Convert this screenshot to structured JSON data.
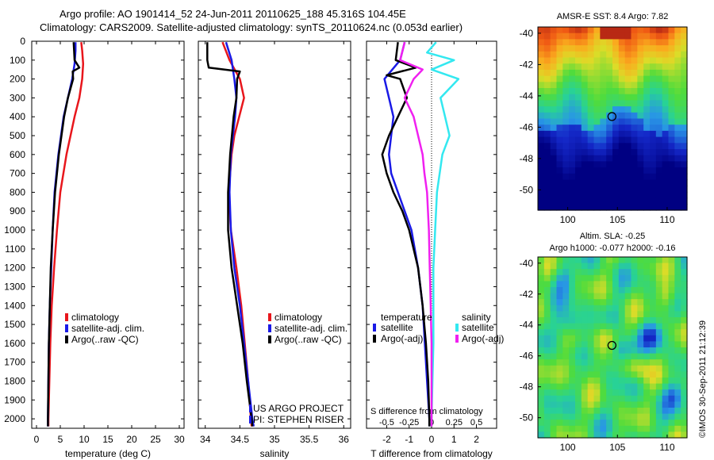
{
  "header": {
    "line1": "Argo profile: AO 1901414_52 24-Jun-2011 20110625_188 45.316S 104.45E",
    "line2": "Climatology: CARS2009. Satellite-adjusted climatology: synTS_20110624.nc (0.053d earlier)"
  },
  "colors": {
    "climatology": "#e8161c",
    "satellite": "#1a1ae6",
    "argo": "#000000",
    "sat_salinity": "#33e8f0",
    "argo_salinity": "#f020f0"
  },
  "chart_data": [
    {
      "type": "line",
      "title": "",
      "xlabel": "temperature (deg C)",
      "ylabel": "",
      "xlim": [
        -1,
        31
      ],
      "ylim": [
        2050,
        0
      ],
      "xticks": [
        "0",
        "5",
        "10",
        "15",
        "20",
        "25",
        "30"
      ],
      "yticks": [
        "0",
        "100",
        "200",
        "300",
        "400",
        "500",
        "600",
        "700",
        "800",
        "900",
        "1000",
        "1100",
        "1200",
        "1300",
        "1400",
        "1500",
        "1600",
        "1700",
        "1800",
        "1900",
        "2000"
      ],
      "legend": [
        "climatology",
        "satellite-adj. clim.",
        "Argo(..raw -QC)"
      ],
      "series": [
        {
          "name": "climatology",
          "color": "#e8161c",
          "depth": [
            5,
            50,
            120,
            200,
            300,
            400,
            600,
            800,
            1000,
            1200,
            1400,
            1600,
            1800,
            2000,
            2040
          ],
          "values": [
            9.4,
            9.6,
            9.8,
            9.6,
            9.0,
            8.0,
            6.3,
            5.0,
            4.3,
            3.7,
            3.2,
            2.9,
            2.7,
            2.5,
            2.5
          ]
        },
        {
          "name": "satellite-adj. clim.",
          "color": "#1a1ae6",
          "depth": [
            5,
            50,
            120,
            200,
            300,
            400,
            600,
            800,
            1000,
            1200,
            1400,
            1600,
            1800,
            2000,
            2040
          ],
          "values": [
            8.2,
            8.2,
            8.0,
            7.5,
            6.6,
            5.7,
            4.6,
            3.8,
            3.4,
            3.1,
            2.8,
            2.6,
            2.5,
            2.4,
            2.4
          ]
        },
        {
          "name": "Argo(..raw -QC)",
          "color": "#000000",
          "depth": [
            5,
            50,
            100,
            140,
            160,
            200,
            300,
            400,
            600,
            800,
            1000,
            1200,
            1400,
            1600,
            1800,
            2000,
            2040
          ],
          "values": [
            7.8,
            7.9,
            8.0,
            9.0,
            7.6,
            7.7,
            6.6,
            5.8,
            4.7,
            3.9,
            3.4,
            3.0,
            2.8,
            2.6,
            2.5,
            2.4,
            2.4
          ]
        }
      ]
    },
    {
      "type": "line",
      "xlabel": "salinity",
      "xlim": [
        33.9,
        36.1
      ],
      "ylim": [
        2050,
        0
      ],
      "xticks": [
        "34",
        "34.5",
        "35",
        "35.5",
        "36"
      ],
      "legend": [
        "climatology",
        "satellite-adj. clim.",
        "Argo(..raw -QC)"
      ],
      "annotations": [
        "US ARGO PROJECT",
        "PI: STEPHEN RISER"
      ],
      "series": [
        {
          "name": "climatology",
          "color": "#e8161c",
          "depth": [
            5,
            100,
            200,
            300,
            400,
            500,
            600,
            800,
            1000,
            1200,
            1400,
            1600,
            1800,
            2000,
            2040
          ],
          "values": [
            34.25,
            34.35,
            34.5,
            34.56,
            34.49,
            34.42,
            34.38,
            34.34,
            34.37,
            34.45,
            34.52,
            34.57,
            34.62,
            34.66,
            34.67
          ]
        },
        {
          "name": "satellite-adj. clim.",
          "color": "#1a1ae6",
          "depth": [
            5,
            100,
            200,
            300,
            400,
            500,
            600,
            800,
            1000,
            1200,
            1400,
            1600,
            1800,
            2000,
            2040
          ],
          "values": [
            34.3,
            34.38,
            34.42,
            34.45,
            34.43,
            34.4,
            34.37,
            34.35,
            34.37,
            34.42,
            34.5,
            34.56,
            34.62,
            34.68,
            34.7
          ]
        },
        {
          "name": "Argo(..raw -QC)",
          "color": "#000000",
          "depth": [
            5,
            100,
            140,
            160,
            200,
            300,
            400,
            600,
            800,
            1000,
            1200,
            1400,
            1600,
            1800,
            2000,
            2040
          ],
          "values": [
            34.03,
            34.03,
            34.05,
            34.5,
            34.46,
            34.45,
            34.41,
            34.36,
            34.33,
            34.33,
            34.38,
            34.46,
            34.54,
            34.6,
            34.67,
            34.68
          ]
        }
      ]
    },
    {
      "type": "line",
      "xlabel": "T difference from climatology",
      "xlabel_top": "S difference from climatology",
      "xlim": [
        -2.9,
        2.9
      ],
      "ylim": [
        2050,
        0
      ],
      "xticks": [
        "-2",
        "-1",
        "0",
        "1",
        "2"
      ],
      "xticks_top": [
        "-0.5",
        "-0.25",
        "0",
        "0.25",
        "0.5"
      ],
      "legend": [
        "temperature",
        "satellite",
        "Argo(-adj)",
        "salinity",
        "satellite",
        "Argo(-adj)"
      ],
      "series": [
        {
          "name": "T satellite",
          "color": "#1a1ae6",
          "depth": [
            5,
            100,
            200,
            300,
            400,
            500,
            600,
            700,
            800,
            900,
            1000,
            1200,
            1400,
            1600,
            1800,
            2000,
            2040
          ],
          "values": [
            -1.2,
            -1.4,
            -2.1,
            -1.9,
            -1.7,
            -1.8,
            -1.9,
            -1.8,
            -1.5,
            -1.2,
            -0.9,
            -0.6,
            -0.4,
            -0.3,
            -0.2,
            -0.1,
            -0.1
          ]
        },
        {
          "name": "T Argo(-adj)",
          "color": "#000000",
          "depth": [
            5,
            100,
            140,
            180,
            200,
            300,
            400,
            500,
            600,
            700,
            800,
            900,
            1000,
            1200,
            1400,
            1600,
            1800,
            2000,
            2040
          ],
          "values": [
            -1.5,
            -1.6,
            -0.7,
            -2.0,
            -1.4,
            -1.1,
            -1.5,
            -1.9,
            -2.2,
            -2.0,
            -1.7,
            -1.3,
            -1.0,
            -0.6,
            -0.4,
            -0.25,
            -0.15,
            -0.1,
            -0.1
          ]
        },
        {
          "name": "S satellite",
          "color": "#33e8f0",
          "depth": [
            5,
            60,
            100,
            150,
            200,
            300,
            400,
            500,
            600,
            800,
            1000,
            1200,
            1400,
            1600,
            1800,
            2000,
            2040
          ],
          "values": [
            0.05,
            -0.05,
            0.25,
            0.0,
            0.3,
            0.1,
            0.15,
            0.2,
            0.12,
            0.06,
            0.04,
            0.02,
            0.02,
            0.02,
            0.01,
            0.0,
            0.0
          ]
        },
        {
          "name": "S Argo(-adj)",
          "color": "#f020f0",
          "depth": [
            5,
            100,
            150,
            200,
            300,
            400,
            500,
            600,
            700,
            800,
            1000,
            1200,
            1400,
            1600,
            1800,
            2000,
            2040
          ],
          "values": [
            -0.3,
            -0.35,
            -0.1,
            -0.2,
            -0.3,
            -0.2,
            -0.15,
            -0.1,
            -0.08,
            -0.05,
            -0.03,
            -0.02,
            -0.01,
            0.0,
            0.0,
            0.0,
            0.0
          ]
        }
      ]
    },
    {
      "type": "heatmap",
      "title": "AMSR-E SST: 8.4 Argo: 7.82",
      "xticks": [
        "100",
        "105",
        "110"
      ],
      "yticks": [
        "-40",
        "-42",
        "-44",
        "-46",
        "-48",
        "-50"
      ],
      "xlim": [
        97,
        112
      ],
      "ylim": [
        -51.3,
        -39.6
      ],
      "marker": {
        "lon": 104.45,
        "lat": -45.32
      }
    },
    {
      "type": "heatmap",
      "title": "Altim. SLA: -0.25",
      "subtitle": "Argo h1000: -0.077 h2000: -0.16",
      "xticks": [
        "100",
        "105",
        "110"
      ],
      "yticks": [
        "-40",
        "-42",
        "-44",
        "-46",
        "-48",
        "-50"
      ],
      "xlim": [
        97,
        112
      ],
      "ylim": [
        -51.3,
        -39.6
      ],
      "marker": {
        "lon": 104.45,
        "lat": -45.32
      }
    }
  ],
  "footer": {
    "credit": "©IMOS 30-Sep-2011 21:12:39"
  }
}
